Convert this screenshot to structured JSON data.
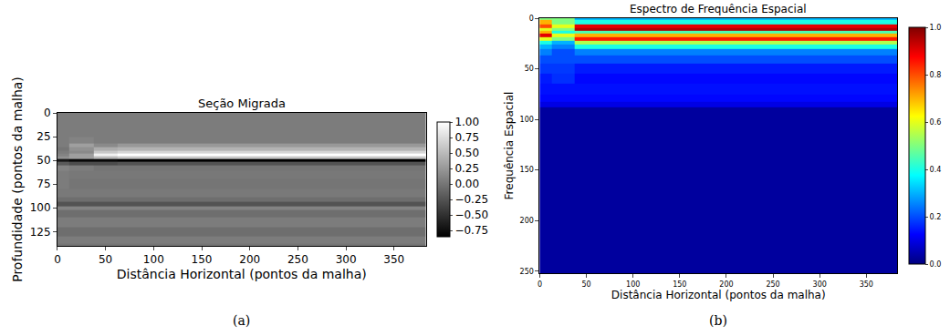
{
  "chart_data": [
    {
      "type": "heatmap",
      "title": "Seção Migrada",
      "panel_label": "(a)",
      "x_label": "Distância Horizontal (pontos da malha)",
      "y_label": "Profundidade (pontos da malha)",
      "color": "gray",
      "xlim": [
        0,
        383
      ],
      "ylim": [
        140,
        0
      ],
      "xticks": [
        0,
        50,
        100,
        150,
        200,
        250,
        300,
        350
      ],
      "yticks": [
        0,
        25,
        50,
        75,
        100,
        125
      ],
      "colorbar_range": [
        -0.85,
        1.0
      ],
      "colorbar_ticks": [
        {
          "value": 1.0,
          "label": "1.00"
        },
        {
          "value": 0.75,
          "label": "0.75"
        },
        {
          "value": 0.5,
          "label": "0.50"
        },
        {
          "value": 0.25,
          "label": "0.25"
        },
        {
          "value": 0.0,
          "label": "0.00"
        },
        {
          "value": -0.25,
          "label": "−0.25"
        },
        {
          "value": -0.5,
          "label": "−0.50"
        },
        {
          "value": -0.75,
          "label": "−0.75"
        }
      ],
      "x": [
        0,
        25,
        50,
        75,
        100,
        125,
        150,
        175,
        200,
        225,
        250,
        275,
        300,
        325,
        350,
        375
      ],
      "y": [
        0,
        20,
        30,
        35,
        38,
        41,
        44,
        47,
        50,
        53,
        57,
        65,
        75,
        85,
        92,
        96,
        100,
        105,
        115,
        125,
        135,
        140
      ],
      "z": [
        [
          0.05,
          0.05,
          0.05,
          0.05,
          0.05,
          0.05,
          0.05,
          0.05,
          0.05,
          0.05,
          0.05,
          0.05,
          0.05,
          0.05,
          0.05,
          0.05
        ],
        [
          0.05,
          0.05,
          0.05,
          0.05,
          0.05,
          0.05,
          0.05,
          0.05,
          0.05,
          0.05,
          0.05,
          0.05,
          0.05,
          0.05,
          0.05,
          0.05
        ],
        [
          0.05,
          0.1,
          0.05,
          0.05,
          0.05,
          0.05,
          0.05,
          0.05,
          0.05,
          0.05,
          0.05,
          0.05,
          0.05,
          0.05,
          0.05,
          0.05
        ],
        [
          0.05,
          0.3,
          0.15,
          0.25,
          0.25,
          0.25,
          0.25,
          0.25,
          0.25,
          0.25,
          0.25,
          0.25,
          0.25,
          0.25,
          0.25,
          0.25
        ],
        [
          0.0,
          0.2,
          0.4,
          0.45,
          0.45,
          0.45,
          0.45,
          0.45,
          0.45,
          0.45,
          0.45,
          0.45,
          0.45,
          0.45,
          0.45,
          0.45
        ],
        [
          0.05,
          0.15,
          0.6,
          0.7,
          0.7,
          0.7,
          0.7,
          0.7,
          0.7,
          0.7,
          0.7,
          0.7,
          0.7,
          0.7,
          0.7,
          0.7
        ],
        [
          0.1,
          0.3,
          0.9,
          1.0,
          1.0,
          1.0,
          1.0,
          1.0,
          1.0,
          1.0,
          1.0,
          1.0,
          1.0,
          1.0,
          1.0,
          1.0
        ],
        [
          0.2,
          0.3,
          0.5,
          0.6,
          0.6,
          0.6,
          0.6,
          0.6,
          0.6,
          0.6,
          0.6,
          0.6,
          0.6,
          0.6,
          0.6,
          0.6
        ],
        [
          -0.7,
          -0.8,
          -0.8,
          -0.85,
          -0.85,
          -0.85,
          -0.85,
          -0.85,
          -0.85,
          -0.85,
          -0.85,
          -0.85,
          -0.85,
          -0.85,
          -0.85,
          -0.85
        ],
        [
          -0.2,
          -0.3,
          -0.3,
          -0.25,
          -0.25,
          -0.25,
          -0.25,
          -0.25,
          -0.25,
          -0.25,
          -0.25,
          -0.25,
          -0.25,
          -0.25,
          -0.25,
          -0.25
        ],
        [
          0.1,
          0.05,
          0.0,
          0.0,
          0.0,
          0.0,
          0.0,
          0.0,
          0.0,
          0.0,
          0.0,
          0.0,
          0.0,
          0.0,
          0.0,
          0.0
        ],
        [
          0.05,
          0.02,
          0.02,
          0.02,
          0.02,
          0.02,
          0.02,
          0.02,
          0.02,
          0.02,
          0.02,
          0.02,
          0.02,
          0.02,
          0.02,
          0.02
        ],
        [
          0.05,
          0.0,
          0.0,
          0.0,
          0.0,
          0.0,
          0.0,
          0.0,
          0.0,
          0.0,
          0.0,
          0.0,
          0.0,
          0.0,
          0.0,
          0.0
        ],
        [
          0.03,
          0.03,
          0.03,
          0.03,
          0.03,
          0.03,
          0.03,
          0.03,
          0.03,
          0.03,
          0.03,
          0.03,
          0.03,
          0.03,
          0.03,
          0.03
        ],
        [
          -0.05,
          -0.05,
          -0.05,
          -0.05,
          -0.05,
          -0.05,
          -0.05,
          -0.05,
          -0.05,
          -0.05,
          -0.05,
          -0.05,
          -0.05,
          -0.05,
          -0.05,
          -0.05
        ],
        [
          -0.25,
          -0.25,
          -0.25,
          -0.25,
          -0.25,
          -0.25,
          -0.25,
          -0.25,
          -0.25,
          -0.25,
          -0.25,
          -0.25,
          -0.25,
          -0.25,
          -0.25,
          -0.25
        ],
        [
          0.1,
          0.1,
          0.1,
          0.1,
          0.1,
          0.1,
          0.1,
          0.1,
          0.1,
          0.1,
          0.1,
          0.1,
          0.1,
          0.1,
          0.1,
          0.1
        ],
        [
          -0.05,
          -0.05,
          -0.05,
          -0.05,
          -0.05,
          -0.05,
          -0.05,
          -0.05,
          -0.05,
          -0.05,
          -0.05,
          -0.05,
          -0.05,
          -0.05,
          -0.05,
          -0.05
        ],
        [
          0.05,
          0.05,
          0.05,
          0.05,
          0.05,
          0.05,
          0.05,
          0.05,
          0.05,
          0.05,
          0.05,
          0.05,
          0.05,
          0.05,
          0.05,
          0.05
        ],
        [
          -0.05,
          -0.05,
          -0.05,
          -0.05,
          -0.05,
          -0.05,
          -0.05,
          -0.05,
          -0.05,
          -0.05,
          -0.05,
          -0.05,
          -0.05,
          -0.05,
          -0.05,
          -0.05
        ],
        [
          0.05,
          0.05,
          0.05,
          0.05,
          0.05,
          0.05,
          0.05,
          0.05,
          0.05,
          0.05,
          0.05,
          0.05,
          0.05,
          0.05,
          0.05,
          0.05
        ],
        [
          0.0,
          0.0,
          0.0,
          0.0,
          0.0,
          0.0,
          0.0,
          0.0,
          0.0,
          0.0,
          0.0,
          0.0,
          0.0,
          0.0,
          0.0,
          0.0
        ]
      ]
    },
    {
      "type": "heatmap",
      "title": "Espectro de Frequência Espacial",
      "panel_label": "(b)",
      "x_label": "Distância Horizontal (pontos da malha)",
      "y_label": "Frequência Espacial",
      "color": "jet",
      "xlim": [
        0,
        383
      ],
      "ylim": [
        252,
        0
      ],
      "xticks": [
        0,
        50,
        100,
        150,
        200,
        250,
        300,
        350
      ],
      "yticks": [
        0,
        50,
        100,
        150,
        200,
        250
      ],
      "colorbar_range": [
        0,
        1
      ],
      "colorbar_ticks": [
        {
          "value": 0,
          "label": "0.0"
        },
        {
          "value": 0.2,
          "label": "0.2"
        },
        {
          "value": 0.4,
          "label": "0.4"
        },
        {
          "value": 0.6,
          "label": "0.6"
        },
        {
          "value": 0.8,
          "label": "0.8"
        },
        {
          "value": 1,
          "label": "1.0"
        }
      ],
      "x": [
        0,
        25,
        50,
        75,
        100,
        125,
        150,
        175,
        200,
        225,
        250,
        275,
        300,
        325,
        350,
        375
      ],
      "y": [
        0,
        4,
        8,
        11,
        14,
        17,
        20,
        24,
        28,
        33,
        40,
        50,
        60,
        70,
        80,
        86,
        90,
        120,
        160,
        200,
        250
      ],
      "z": [
        [
          0.5,
          0.5,
          0.3,
          0.3,
          0.3,
          0.3,
          0.3,
          0.3,
          0.3,
          0.3,
          0.3,
          0.3,
          0.3,
          0.3,
          0.3,
          0.3
        ],
        [
          0.7,
          0.5,
          0.4,
          0.4,
          0.4,
          0.4,
          0.4,
          0.4,
          0.4,
          0.4,
          0.4,
          0.4,
          0.4,
          0.4,
          0.4,
          0.4
        ],
        [
          0.8,
          0.6,
          0.9,
          0.9,
          0.9,
          0.9,
          0.9,
          0.9,
          0.9,
          0.9,
          0.9,
          0.9,
          0.9,
          0.9,
          0.9,
          0.9
        ],
        [
          0.6,
          0.5,
          0.95,
          0.95,
          0.95,
          0.95,
          0.95,
          0.95,
          0.95,
          0.95,
          0.95,
          0.95,
          0.95,
          0.95,
          0.95,
          0.95
        ],
        [
          0.7,
          0.4,
          0.45,
          0.45,
          0.45,
          0.45,
          0.45,
          0.45,
          0.45,
          0.45,
          0.45,
          0.45,
          0.45,
          0.45,
          0.45,
          0.45
        ],
        [
          0.9,
          0.6,
          0.7,
          0.7,
          0.7,
          0.7,
          0.7,
          0.7,
          0.7,
          0.7,
          0.7,
          0.7,
          0.7,
          0.7,
          0.7,
          0.7
        ],
        [
          0.6,
          0.5,
          0.85,
          0.85,
          0.85,
          0.85,
          0.85,
          0.85,
          0.85,
          0.85,
          0.85,
          0.85,
          0.85,
          0.85,
          0.85,
          0.85
        ],
        [
          0.4,
          0.3,
          0.55,
          0.55,
          0.55,
          0.55,
          0.55,
          0.55,
          0.55,
          0.55,
          0.55,
          0.55,
          0.55,
          0.55,
          0.55,
          0.55
        ],
        [
          0.3,
          0.25,
          0.4,
          0.4,
          0.4,
          0.4,
          0.4,
          0.4,
          0.4,
          0.4,
          0.4,
          0.4,
          0.4,
          0.4,
          0.4,
          0.4
        ],
        [
          0.25,
          0.2,
          0.25,
          0.25,
          0.25,
          0.25,
          0.25,
          0.25,
          0.25,
          0.25,
          0.25,
          0.25,
          0.25,
          0.25,
          0.25,
          0.25
        ],
        [
          0.2,
          0.2,
          0.2,
          0.2,
          0.2,
          0.2,
          0.2,
          0.2,
          0.2,
          0.2,
          0.2,
          0.2,
          0.2,
          0.2,
          0.2,
          0.2
        ],
        [
          0.18,
          0.18,
          0.15,
          0.15,
          0.15,
          0.15,
          0.15,
          0.15,
          0.15,
          0.15,
          0.15,
          0.15,
          0.15,
          0.15,
          0.15,
          0.15
        ],
        [
          0.15,
          0.17,
          0.13,
          0.13,
          0.13,
          0.13,
          0.13,
          0.13,
          0.13,
          0.13,
          0.13,
          0.13,
          0.13,
          0.13,
          0.13,
          0.13
        ],
        [
          0.14,
          0.14,
          0.14,
          0.14,
          0.14,
          0.14,
          0.14,
          0.14,
          0.14,
          0.14,
          0.14,
          0.14,
          0.14,
          0.14,
          0.14,
          0.14
        ],
        [
          0.13,
          0.13,
          0.13,
          0.13,
          0.13,
          0.13,
          0.13,
          0.13,
          0.13,
          0.13,
          0.13,
          0.13,
          0.13,
          0.13,
          0.13,
          0.13
        ],
        [
          0.1,
          0.1,
          0.1,
          0.1,
          0.1,
          0.1,
          0.1,
          0.1,
          0.1,
          0.1,
          0.1,
          0.1,
          0.1,
          0.1,
          0.1,
          0.1
        ],
        [
          0.03,
          0.03,
          0.03,
          0.03,
          0.03,
          0.03,
          0.03,
          0.03,
          0.03,
          0.03,
          0.03,
          0.03,
          0.03,
          0.03,
          0.03,
          0.03
        ],
        [
          0.03,
          0.03,
          0.03,
          0.03,
          0.03,
          0.03,
          0.03,
          0.03,
          0.03,
          0.03,
          0.03,
          0.03,
          0.03,
          0.03,
          0.03,
          0.03
        ],
        [
          0.03,
          0.03,
          0.03,
          0.03,
          0.03,
          0.03,
          0.03,
          0.03,
          0.03,
          0.03,
          0.03,
          0.03,
          0.03,
          0.03,
          0.03,
          0.03
        ],
        [
          0.03,
          0.03,
          0.03,
          0.03,
          0.03,
          0.03,
          0.03,
          0.03,
          0.03,
          0.03,
          0.03,
          0.03,
          0.03,
          0.03,
          0.03,
          0.03
        ],
        [
          0.03,
          0.03,
          0.03,
          0.03,
          0.03,
          0.03,
          0.03,
          0.03,
          0.03,
          0.03,
          0.03,
          0.03,
          0.03,
          0.03,
          0.03,
          0.03
        ]
      ]
    }
  ]
}
